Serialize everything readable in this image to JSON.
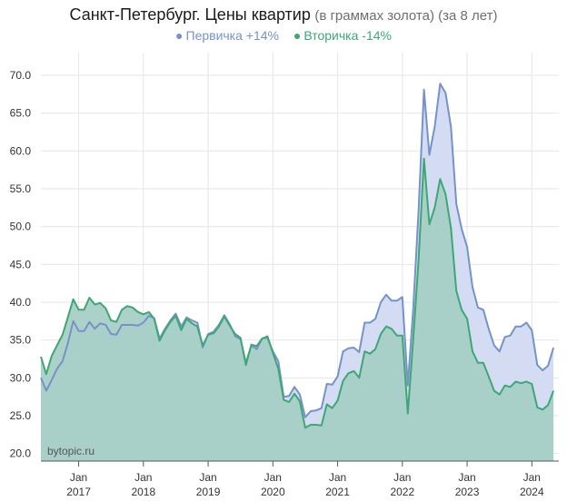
{
  "title": {
    "main": "Санкт-Петербург. Цены квартир",
    "sub": "(в граммах золота) (за 8 лет)"
  },
  "watermark": "bytopic.ru",
  "colors": {
    "primary": "#7592c9",
    "primary_fill": "#d3dcf3",
    "secondary": "#3ea775",
    "secondary_fill": "#a7cfc5",
    "grid": "#e6e6e6",
    "axis": "#555555"
  },
  "chart_data": {
    "type": "area",
    "title": "Санкт-Петербург. Цены квартир",
    "subtitle": "(в граммах золота) (за 8 лет)",
    "xlabel": "",
    "ylabel": "",
    "x_range": [
      "2016-06",
      "2024-06"
    ],
    "ylim": [
      19,
      73
    ],
    "y_ticks": [
      "20.0",
      "25.0",
      "30.0",
      "35.0",
      "40.0",
      "45.0",
      "50.0",
      "55.0",
      "60.0",
      "65.0",
      "70.0"
    ],
    "x_ticks": [
      {
        "month": "Jan",
        "year": "2017",
        "date": "2017-01"
      },
      {
        "month": "Jan",
        "year": "2018",
        "date": "2018-01"
      },
      {
        "month": "Jan",
        "year": "2019",
        "date": "2019-01"
      },
      {
        "month": "Jan",
        "year": "2020",
        "date": "2020-01"
      },
      {
        "month": "Jan",
        "year": "2021",
        "date": "2021-01"
      },
      {
        "month": "Jan",
        "year": "2022",
        "date": "2022-01"
      },
      {
        "month": "Jan",
        "year": "2023",
        "date": "2023-01"
      },
      {
        "month": "Jan",
        "year": "2024",
        "date": "2024-01"
      }
    ],
    "grid": true,
    "legend_position": "top-center",
    "series": [
      {
        "name": "Первичка +14%",
        "color": "#7592c9",
        "points": [
          [
            "2016-06",
            30.0
          ],
          [
            "2016-07",
            28.3
          ],
          [
            "2016-08",
            29.7
          ],
          [
            "2016-09",
            31.2
          ],
          [
            "2016-10",
            32.2
          ],
          [
            "2016-11",
            34.6
          ],
          [
            "2016-12",
            37.5
          ],
          [
            "2017-01",
            36.2
          ],
          [
            "2017-02",
            36.2
          ],
          [
            "2017-03",
            37.4
          ],
          [
            "2017-04",
            36.5
          ],
          [
            "2017-05",
            37.2
          ],
          [
            "2017-06",
            37.0
          ],
          [
            "2017-07",
            35.8
          ],
          [
            "2017-08",
            35.7
          ],
          [
            "2017-09",
            37.0
          ],
          [
            "2017-10",
            37.0
          ],
          [
            "2017-11",
            37.0
          ],
          [
            "2017-12",
            36.9
          ],
          [
            "2018-01",
            37.3
          ],
          [
            "2018-02",
            38.2
          ],
          [
            "2018-03",
            37.9
          ],
          [
            "2018-04",
            35.2
          ],
          [
            "2018-05",
            36.5
          ],
          [
            "2018-06",
            37.6
          ],
          [
            "2018-07",
            38.5
          ],
          [
            "2018-08",
            36.8
          ],
          [
            "2018-09",
            38.0
          ],
          [
            "2018-10",
            37.6
          ],
          [
            "2018-11",
            37.3
          ],
          [
            "2018-12",
            34.0
          ],
          [
            "2019-01",
            35.8
          ],
          [
            "2019-02",
            36.1
          ],
          [
            "2019-03",
            37.0
          ],
          [
            "2019-04",
            38.3
          ],
          [
            "2019-05",
            37.1
          ],
          [
            "2019-06",
            35.5
          ],
          [
            "2019-07",
            35.1
          ],
          [
            "2019-08",
            32.0
          ],
          [
            "2019-09",
            34.3
          ],
          [
            "2019-10",
            33.8
          ],
          [
            "2019-11",
            35.2
          ],
          [
            "2019-12",
            35.3
          ],
          [
            "2020-01",
            33.5
          ],
          [
            "2020-02",
            32.2
          ],
          [
            "2020-03",
            27.5
          ],
          [
            "2020-04",
            27.6
          ],
          [
            "2020-05",
            28.8
          ],
          [
            "2020-06",
            27.8
          ],
          [
            "2020-07",
            24.8
          ],
          [
            "2020-08",
            25.6
          ],
          [
            "2020-09",
            25.7
          ],
          [
            "2020-10",
            26.0
          ],
          [
            "2020-11",
            29.2
          ],
          [
            "2020-12",
            29.1
          ],
          [
            "2021-01",
            30.2
          ],
          [
            "2021-02",
            33.5
          ],
          [
            "2021-03",
            33.9
          ],
          [
            "2021-04",
            34.0
          ],
          [
            "2021-05",
            33.4
          ],
          [
            "2021-06",
            37.3
          ],
          [
            "2021-07",
            37.3
          ],
          [
            "2021-08",
            37.8
          ],
          [
            "2021-09",
            40.0
          ],
          [
            "2021-10",
            41.0
          ],
          [
            "2021-11",
            40.2
          ],
          [
            "2021-12",
            40.2
          ],
          [
            "2022-01",
            40.7
          ],
          [
            "2022-02",
            29.0
          ],
          [
            "2022-03",
            39.0
          ],
          [
            "2022-04",
            52.0
          ],
          [
            "2022-05",
            68.1
          ],
          [
            "2022-06",
            59.5
          ],
          [
            "2022-07",
            63.2
          ],
          [
            "2022-08",
            68.9
          ],
          [
            "2022-09",
            67.7
          ],
          [
            "2022-10",
            63.2
          ],
          [
            "2022-11",
            53.0
          ],
          [
            "2022-12",
            49.7
          ],
          [
            "2023-01",
            47.3
          ],
          [
            "2023-02",
            42.0
          ],
          [
            "2023-03",
            39.3
          ],
          [
            "2023-04",
            39.0
          ],
          [
            "2023-05",
            36.5
          ],
          [
            "2023-06",
            34.3
          ],
          [
            "2023-07",
            33.5
          ],
          [
            "2023-08",
            35.4
          ],
          [
            "2023-09",
            35.6
          ],
          [
            "2023-10",
            36.8
          ],
          [
            "2023-11",
            36.8
          ],
          [
            "2023-12",
            37.3
          ],
          [
            "2024-01",
            36.3
          ],
          [
            "2024-02",
            31.7
          ],
          [
            "2024-03",
            31.0
          ],
          [
            "2024-04",
            31.6
          ],
          [
            "2024-05",
            34.0
          ]
        ]
      },
      {
        "name": "Вторичка -14%",
        "color": "#3ea775",
        "points": [
          [
            "2016-06",
            32.8
          ],
          [
            "2016-07",
            30.5
          ],
          [
            "2016-08",
            32.9
          ],
          [
            "2016-09",
            34.3
          ],
          [
            "2016-10",
            35.7
          ],
          [
            "2016-11",
            38.0
          ],
          [
            "2016-12",
            40.4
          ],
          [
            "2017-01",
            39.0
          ],
          [
            "2017-02",
            39.0
          ],
          [
            "2017-03",
            40.6
          ],
          [
            "2017-04",
            39.7
          ],
          [
            "2017-05",
            39.9
          ],
          [
            "2017-06",
            39.2
          ],
          [
            "2017-07",
            37.6
          ],
          [
            "2017-08",
            37.4
          ],
          [
            "2017-09",
            39.0
          ],
          [
            "2017-10",
            39.5
          ],
          [
            "2017-11",
            39.3
          ],
          [
            "2017-12",
            38.7
          ],
          [
            "2018-01",
            38.4
          ],
          [
            "2018-02",
            38.7
          ],
          [
            "2018-03",
            37.8
          ],
          [
            "2018-04",
            34.9
          ],
          [
            "2018-05",
            36.3
          ],
          [
            "2018-06",
            37.4
          ],
          [
            "2018-07",
            38.2
          ],
          [
            "2018-08",
            36.3
          ],
          [
            "2018-09",
            37.8
          ],
          [
            "2018-10",
            37.2
          ],
          [
            "2018-11",
            36.8
          ],
          [
            "2018-12",
            34.3
          ],
          [
            "2019-01",
            35.7
          ],
          [
            "2019-02",
            35.9
          ],
          [
            "2019-03",
            36.8
          ],
          [
            "2019-04",
            38.1
          ],
          [
            "2019-05",
            36.9
          ],
          [
            "2019-06",
            35.8
          ],
          [
            "2019-07",
            35.3
          ],
          [
            "2019-08",
            31.7
          ],
          [
            "2019-09",
            34.4
          ],
          [
            "2019-10",
            34.2
          ],
          [
            "2019-11",
            35.2
          ],
          [
            "2019-12",
            35.5
          ],
          [
            "2020-01",
            33.3
          ],
          [
            "2020-02",
            31.2
          ],
          [
            "2020-03",
            27.1
          ],
          [
            "2020-04",
            26.8
          ],
          [
            "2020-05",
            27.9
          ],
          [
            "2020-06",
            26.9
          ],
          [
            "2020-07",
            23.4
          ],
          [
            "2020-08",
            23.8
          ],
          [
            "2020-09",
            23.8
          ],
          [
            "2020-10",
            23.7
          ],
          [
            "2020-11",
            26.5
          ],
          [
            "2020-12",
            26.0
          ],
          [
            "2021-01",
            27.0
          ],
          [
            "2021-02",
            29.6
          ],
          [
            "2021-03",
            30.6
          ],
          [
            "2021-04",
            30.9
          ],
          [
            "2021-05",
            30.0
          ],
          [
            "2021-06",
            33.5
          ],
          [
            "2021-07",
            33.2
          ],
          [
            "2021-08",
            33.8
          ],
          [
            "2021-09",
            35.8
          ],
          [
            "2021-10",
            36.8
          ],
          [
            "2021-11",
            36.5
          ],
          [
            "2021-12",
            35.6
          ],
          [
            "2022-01",
            35.6
          ],
          [
            "2022-02",
            25.3
          ],
          [
            "2022-03",
            35.0
          ],
          [
            "2022-04",
            45.5
          ],
          [
            "2022-05",
            59.0
          ],
          [
            "2022-06",
            50.3
          ],
          [
            "2022-07",
            52.5
          ],
          [
            "2022-08",
            56.3
          ],
          [
            "2022-09",
            54.3
          ],
          [
            "2022-10",
            49.8
          ],
          [
            "2022-11",
            41.5
          ],
          [
            "2022-12",
            39.0
          ],
          [
            "2023-01",
            37.8
          ],
          [
            "2023-02",
            33.5
          ],
          [
            "2023-03",
            32.0
          ],
          [
            "2023-04",
            32.0
          ],
          [
            "2023-05",
            30.2
          ],
          [
            "2023-06",
            28.3
          ],
          [
            "2023-07",
            27.8
          ],
          [
            "2023-08",
            29.0
          ],
          [
            "2023-09",
            28.8
          ],
          [
            "2023-10",
            29.5
          ],
          [
            "2023-11",
            29.3
          ],
          [
            "2023-12",
            29.5
          ],
          [
            "2024-01",
            29.2
          ],
          [
            "2024-02",
            26.1
          ],
          [
            "2024-03",
            25.8
          ],
          [
            "2024-04",
            26.4
          ],
          [
            "2024-05",
            28.3
          ]
        ]
      }
    ]
  }
}
